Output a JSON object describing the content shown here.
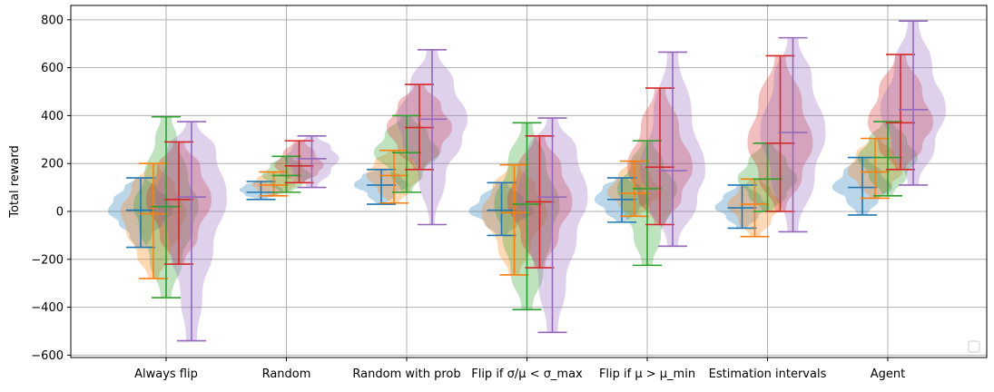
{
  "chart_data": {
    "type": "violin",
    "title": "",
    "xlabel": "",
    "ylabel": "Total reward",
    "ylim": [
      -610,
      860
    ],
    "yticks": [
      -600,
      -400,
      -200,
      0,
      200,
      400,
      600,
      800
    ],
    "grid": true,
    "legend": {
      "placement": "lower-right",
      "entries": []
    },
    "categories": [
      "Always flip",
      "Random",
      "Random with prob",
      "Flip if σ/μ < σ_max",
      "Flip if μ > μ_min",
      "Estimation intervals",
      "Agent"
    ],
    "series": [
      {
        "color": "#1f77b4",
        "violins": [
          {
            "min": -150,
            "max": 140,
            "median": 5,
            "body": [
              [
                -150,
                2
              ],
              [
                -100,
                4
              ],
              [
                -50,
                8
              ],
              [
                0,
                12
              ],
              [
                50,
                10
              ],
              [
                100,
                6
              ],
              [
                140,
                2
              ]
            ]
          },
          {
            "min": 50,
            "max": 125,
            "median": 80,
            "body": [
              [
                50,
                2
              ],
              [
                70,
                6
              ],
              [
                90,
                8
              ],
              [
                110,
                6
              ],
              [
                125,
                2
              ]
            ]
          },
          {
            "min": 30,
            "max": 175,
            "median": 110,
            "body": [
              [
                30,
                2
              ],
              [
                70,
                5
              ],
              [
                110,
                10
              ],
              [
                150,
                7
              ],
              [
                175,
                2
              ]
            ]
          },
          {
            "min": -100,
            "max": 120,
            "median": 5,
            "body": [
              [
                -100,
                2
              ],
              [
                -50,
                6
              ],
              [
                0,
                12
              ],
              [
                50,
                8
              ],
              [
                120,
                2
              ]
            ]
          },
          {
            "min": -45,
            "max": 140,
            "median": 50,
            "body": [
              [
                -45,
                2
              ],
              [
                0,
                6
              ],
              [
                50,
                10
              ],
              [
                100,
                7
              ],
              [
                140,
                2
              ]
            ]
          },
          {
            "min": -70,
            "max": 110,
            "median": 15,
            "body": [
              [
                -70,
                2
              ],
              [
                -20,
                6
              ],
              [
                15,
                10
              ],
              [
                60,
                7
              ],
              [
                110,
                2
              ]
            ]
          },
          {
            "min": -15,
            "max": 225,
            "median": 100,
            "body": [
              [
                -15,
                2
              ],
              [
                50,
                6
              ],
              [
                100,
                11
              ],
              [
                160,
                7
              ],
              [
                225,
                2
              ]
            ]
          }
        ]
      },
      {
        "color": "#ff7f0e",
        "violins": [
          {
            "min": -280,
            "max": 200,
            "median": -10,
            "body": [
              [
                -280,
                2
              ],
              [
                -180,
                6
              ],
              [
                -80,
                10
              ],
              [
                0,
                12
              ],
              [
                100,
                8
              ],
              [
                200,
                2
              ]
            ]
          },
          {
            "min": 65,
            "max": 165,
            "median": 110,
            "body": [
              [
                65,
                2
              ],
              [
                90,
                6
              ],
              [
                110,
                8
              ],
              [
                140,
                6
              ],
              [
                165,
                2
              ]
            ]
          },
          {
            "min": 35,
            "max": 255,
            "median": 150,
            "body": [
              [
                35,
                2
              ],
              [
                90,
                6
              ],
              [
                150,
                10
              ],
              [
                210,
                7
              ],
              [
                255,
                2
              ]
            ]
          },
          {
            "min": -265,
            "max": 195,
            "median": -5,
            "body": [
              [
                -265,
                2
              ],
              [
                -150,
                6
              ],
              [
                -5,
                12
              ],
              [
                100,
                8
              ],
              [
                195,
                2
              ]
            ]
          },
          {
            "min": -20,
            "max": 210,
            "median": 75,
            "body": [
              [
                -20,
                2
              ],
              [
                30,
                6
              ],
              [
                75,
                10
              ],
              [
                150,
                6
              ],
              [
                210,
                2
              ]
            ]
          },
          {
            "min": -105,
            "max": 135,
            "median": 30,
            "body": [
              [
                -105,
                2
              ],
              [
                -40,
                6
              ],
              [
                30,
                10
              ],
              [
                90,
                6
              ],
              [
                135,
                2
              ]
            ]
          },
          {
            "min": 55,
            "max": 305,
            "median": 165,
            "body": [
              [
                55,
                2
              ],
              [
                110,
                6
              ],
              [
                165,
                10
              ],
              [
                240,
                7
              ],
              [
                305,
                2
              ]
            ]
          }
        ]
      },
      {
        "color": "#2ca02c",
        "violins": [
          {
            "min": -360,
            "max": 395,
            "median": 20,
            "body": [
              [
                -360,
                2
              ],
              [
                -200,
                6
              ],
              [
                -60,
                10
              ],
              [
                20,
                12
              ],
              [
                150,
                8
              ],
              [
                300,
                4
              ],
              [
                395,
                2
              ]
            ]
          },
          {
            "min": 80,
            "max": 230,
            "median": 150,
            "body": [
              [
                80,
                2
              ],
              [
                115,
                6
              ],
              [
                150,
                9
              ],
              [
                190,
                6
              ],
              [
                230,
                2
              ]
            ]
          },
          {
            "min": 80,
            "max": 400,
            "median": 245,
            "body": [
              [
                80,
                2
              ],
              [
                160,
                6
              ],
              [
                245,
                12
              ],
              [
                320,
                8
              ],
              [
                400,
                2
              ]
            ]
          },
          {
            "min": -410,
            "max": 370,
            "median": 30,
            "body": [
              [
                -410,
                2
              ],
              [
                -250,
                6
              ],
              [
                -100,
                9
              ],
              [
                30,
                12
              ],
              [
                200,
                7
              ],
              [
                370,
                2
              ]
            ]
          },
          {
            "min": -225,
            "max": 295,
            "median": 95,
            "body": [
              [
                -225,
                2
              ],
              [
                -100,
                5
              ],
              [
                20,
                9
              ],
              [
                95,
                11
              ],
              [
                200,
                6
              ],
              [
                295,
                2
              ]
            ]
          },
          {
            "min": 0,
            "max": 285,
            "median": 135,
            "body": [
              [
                0,
                2
              ],
              [
                70,
                7
              ],
              [
                135,
                11
              ],
              [
                210,
                7
              ],
              [
                285,
                2
              ]
            ]
          },
          {
            "min": 65,
            "max": 375,
            "median": 225,
            "body": [
              [
                65,
                2
              ],
              [
                150,
                7
              ],
              [
                225,
                11
              ],
              [
                300,
                7
              ],
              [
                375,
                2
              ]
            ]
          }
        ]
      },
      {
        "color": "#d62728",
        "violins": [
          {
            "min": -220,
            "max": 290,
            "median": 50,
            "body": [
              [
                -220,
                2
              ],
              [
                -100,
                7
              ],
              [
                50,
                12
              ],
              [
                180,
                8
              ],
              [
                290,
                2
              ]
            ]
          },
          {
            "min": 120,
            "max": 295,
            "median": 190,
            "body": [
              [
                120,
                2
              ],
              [
                160,
                7
              ],
              [
                190,
                9
              ],
              [
                240,
                6
              ],
              [
                295,
                2
              ]
            ]
          },
          {
            "min": 175,
            "max": 530,
            "median": 350,
            "body": [
              [
                175,
                2
              ],
              [
                260,
                8
              ],
              [
                350,
                12
              ],
              [
                440,
                8
              ],
              [
                530,
                2
              ]
            ]
          },
          {
            "min": -235,
            "max": 315,
            "median": 40,
            "body": [
              [
                -235,
                2
              ],
              [
                -100,
                7
              ],
              [
                40,
                12
              ],
              [
                180,
                8
              ],
              [
                315,
                2
              ]
            ]
          },
          {
            "min": -55,
            "max": 515,
            "median": 185,
            "body": [
              [
                -55,
                2
              ],
              [
                60,
                8
              ],
              [
                185,
                12
              ],
              [
                350,
                7
              ],
              [
                515,
                2
              ]
            ]
          },
          {
            "min": 0,
            "max": 650,
            "median": 285,
            "body": [
              [
                0,
                2
              ],
              [
                150,
                8
              ],
              [
                285,
                12
              ],
              [
                450,
                8
              ],
              [
                650,
                2
              ]
            ]
          },
          {
            "min": 175,
            "max": 655,
            "median": 370,
            "body": [
              [
                175,
                2
              ],
              [
                270,
                8
              ],
              [
                370,
                12
              ],
              [
                500,
                8
              ],
              [
                655,
                2
              ]
            ]
          }
        ]
      },
      {
        "color": "#9467bd",
        "violins": [
          {
            "min": -540,
            "max": 375,
            "median": 60,
            "body": [
              [
                -540,
                2
              ],
              [
                -350,
                4
              ],
              [
                -150,
                8
              ],
              [
                60,
                13
              ],
              [
                250,
                9
              ],
              [
                375,
                2
              ]
            ]
          },
          {
            "min": 100,
            "max": 315,
            "median": 220,
            "body": [
              [
                100,
                2
              ],
              [
                170,
                7
              ],
              [
                220,
                10
              ],
              [
                270,
                7
              ],
              [
                315,
                2
              ]
            ]
          },
          {
            "min": -55,
            "max": 675,
            "median": 385,
            "body": [
              [
                -55,
                1
              ],
              [
                150,
                5
              ],
              [
                300,
                11
              ],
              [
                385,
                13
              ],
              [
                530,
                8
              ],
              [
                675,
                2
              ]
            ]
          },
          {
            "min": -505,
            "max": 390,
            "median": 60,
            "body": [
              [
                -505,
                2
              ],
              [
                -300,
                5
              ],
              [
                -100,
                9
              ],
              [
                60,
                13
              ],
              [
                250,
                9
              ],
              [
                390,
                2
              ]
            ]
          },
          {
            "min": -145,
            "max": 665,
            "median": 170,
            "body": [
              [
                -145,
                2
              ],
              [
                50,
                9
              ],
              [
                170,
                12
              ],
              [
                400,
                7
              ],
              [
                665,
                2
              ]
            ]
          },
          {
            "min": -85,
            "max": 725,
            "median": 330,
            "body": [
              [
                -85,
                2
              ],
              [
                150,
                8
              ],
              [
                330,
                12
              ],
              [
                550,
                7
              ],
              [
                725,
                2
              ]
            ]
          },
          {
            "min": 110,
            "max": 795,
            "median": 425,
            "body": [
              [
                110,
                2
              ],
              [
                280,
                8
              ],
              [
                425,
                12
              ],
              [
                600,
                7
              ],
              [
                795,
                2
              ]
            ]
          }
        ]
      }
    ]
  }
}
